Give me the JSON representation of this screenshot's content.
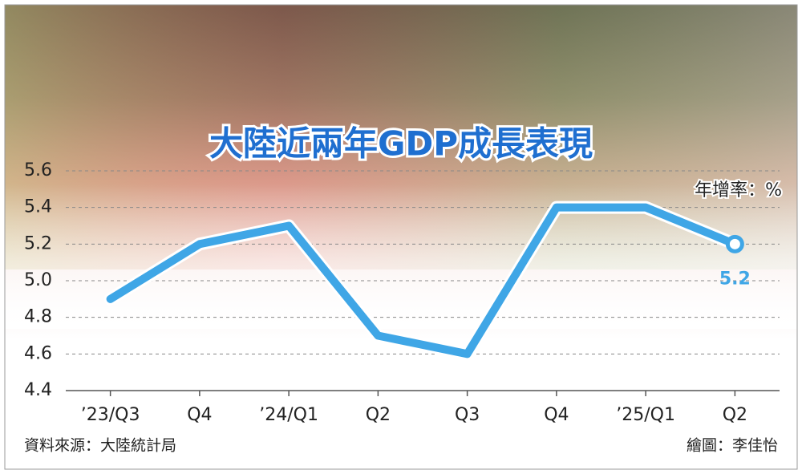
{
  "chart_data": {
    "type": "line",
    "title": "大陸近兩年GDP成長表現",
    "unit_label": "年增率：%",
    "source": "資料來源：大陸統計局",
    "credit": "繪圖：李佳怡",
    "categories": [
      "’23/Q3",
      "Q4",
      "’24/Q1",
      "Q2",
      "Q3",
      "Q4",
      "’25/Q1",
      "Q2"
    ],
    "values": [
      4.9,
      5.2,
      5.3,
      4.7,
      4.6,
      5.4,
      5.4,
      5.2
    ],
    "color": "#3fa6e6",
    "ylim": [
      4.4,
      5.6
    ],
    "yticks": [
      4.4,
      4.6,
      4.8,
      {
        "value": 5,
        "label": "5.0"
      },
      5.2,
      5.4,
      5.6
    ],
    "grid": true
  }
}
